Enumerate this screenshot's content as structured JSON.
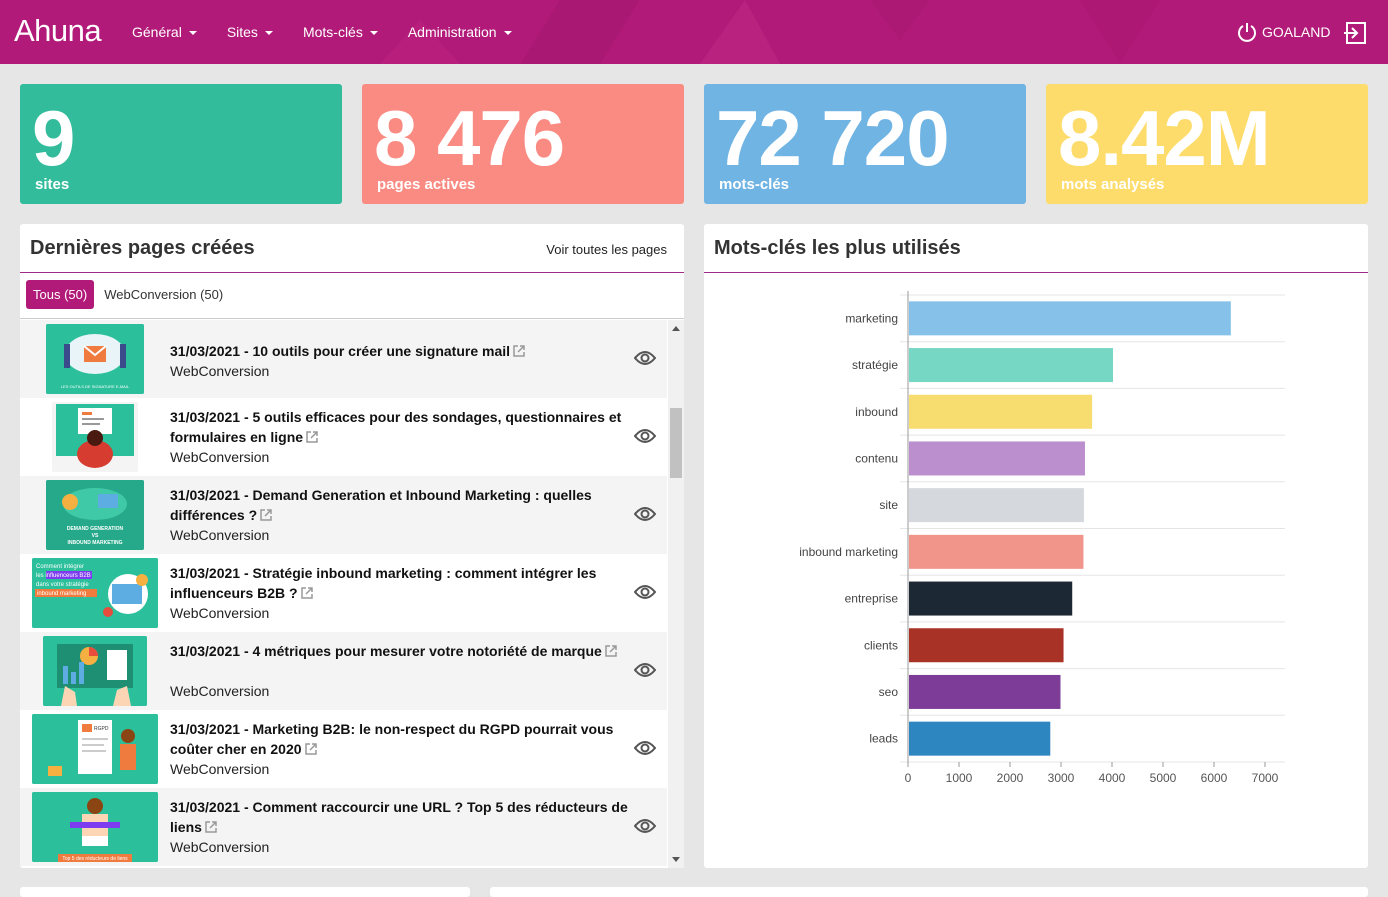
{
  "navbar": {
    "brand": "Ahuna",
    "menu": [
      "Général",
      "Sites",
      "Mots-clés",
      "Administration"
    ],
    "user": "GOALAND"
  },
  "stats": [
    {
      "value": "9",
      "label": "sites",
      "color": "#33bc9c"
    },
    {
      "value": "8 476",
      "label": "pages actives",
      "color": "#f98b82"
    },
    {
      "value": "72 720",
      "label": "mots-clés",
      "color": "#70b4e4"
    },
    {
      "value": "8.42M",
      "label": "mots analysés",
      "color": "#fedc6c"
    }
  ],
  "pages_panel": {
    "title": "Dernières pages créées",
    "link": "Voir toutes les pages",
    "tabs": [
      "Tous (50)",
      "WebConversion (50)"
    ],
    "rows": [
      {
        "title": "31/03/2021 - 10 outils pour créer une signature mail",
        "site": "WebConversion",
        "thumb_text": "LES OUTILS DE SIGNATURE E-MAIL"
      },
      {
        "title": "31/03/2021 - 5 outils efficaces pour des sondages, questionnaires et formulaires en ligne",
        "site": "WebConversion",
        "thumb_text": ""
      },
      {
        "title": "31/03/2021 - Demand Generation et Inbound Marketing : quelles différences ?",
        "site": "WebConversion",
        "thumb_text": "DEMAND GENERATION VS INBOUND MARKETING"
      },
      {
        "title": "31/03/2021 - Stratégie inbound marketing : comment intégrer les influenceurs B2B ?",
        "site": "WebConversion",
        "thumb_text": "Comment intégrer les influenceurs B2B dans votre stratégie inbound marketing"
      },
      {
        "title": "31/03/2021 - 4 métriques pour mesurer votre notoriété de marque",
        "site": "WebConversion",
        "thumb_text": ""
      },
      {
        "title": "31/03/2021 - Marketing B2B: le non-respect du RGPD pourrait vous coûter cher en 2020",
        "site": "WebConversion",
        "thumb_text": "RGPD"
      },
      {
        "title": "31/03/2021 - Comment raccourcir une URL ? Top 5 des réducteurs de liens",
        "site": "WebConversion",
        "thumb_text": "Top 5 des réducteurs de liens"
      }
    ]
  },
  "chart_panel": {
    "title": "Mots-clés les plus utilisés"
  },
  "chart_data": {
    "type": "bar",
    "orientation": "horizontal",
    "categories": [
      "marketing",
      "stratégie",
      "inbound",
      "contenu",
      "site",
      "inbound marketing",
      "entreprise",
      "clients",
      "seo",
      "leads"
    ],
    "values": [
      6330,
      4020,
      3610,
      3470,
      3450,
      3440,
      3220,
      3050,
      2990,
      2790
    ],
    "colors": [
      "#85c1e9",
      "#76d7c4",
      "#f7dc6f",
      "#bb8fce",
      "#d5d8dc",
      "#f1948a",
      "#1c2833",
      "#a93226",
      "#7d3c98",
      "#2e86c1"
    ],
    "xlim": [
      0,
      7000
    ],
    "xticks": [
      0,
      1000,
      2000,
      3000,
      4000,
      5000,
      6000,
      7000
    ],
    "grid": true,
    "title": "",
    "xlabel": "",
    "ylabel": ""
  }
}
